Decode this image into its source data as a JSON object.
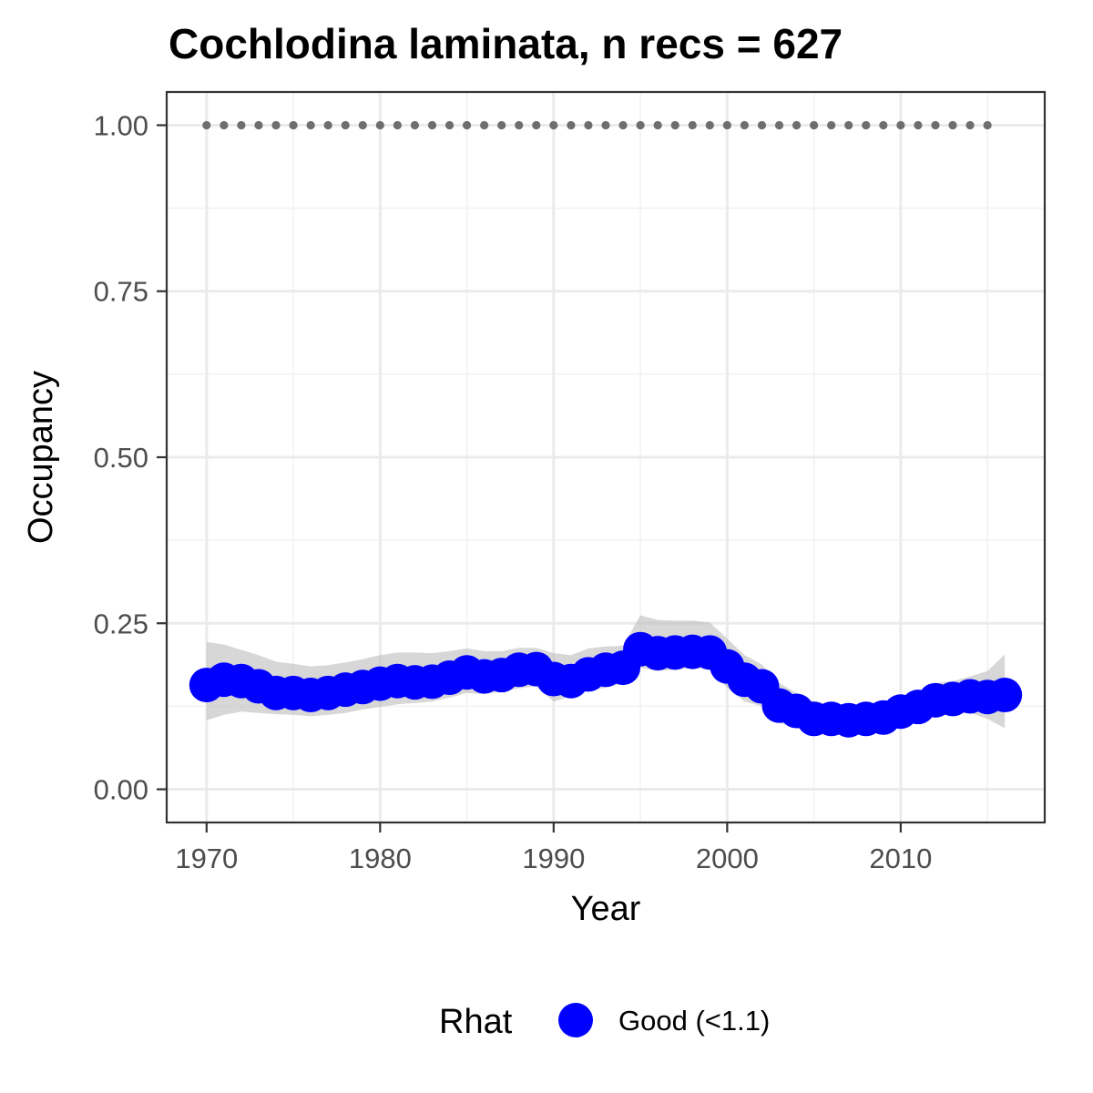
{
  "chart_data": {
    "type": "line",
    "title": "Cochlodina laminata, n recs = 627",
    "xlabel": "Year",
    "ylabel": "Occupancy",
    "xlim": [
      1967.7,
      2018.3
    ],
    "ylim": [
      -0.05,
      1.05
    ],
    "x_ticks": [
      1970,
      1980,
      1990,
      2000,
      2010
    ],
    "x_tick_labels": [
      "1970",
      "1980",
      "1990",
      "2000",
      "2010"
    ],
    "y_ticks": [
      0,
      0.25,
      0.5,
      0.75,
      1.0
    ],
    "y_tick_labels": [
      "0.00",
      "0.25",
      "0.50",
      "0.75",
      "1.00"
    ],
    "grid": true,
    "legend": {
      "position": "bottom",
      "title": "Rhat",
      "entries": [
        {
          "label": "Good (<1.1)",
          "color": "#0000ff"
        }
      ]
    },
    "series": [
      {
        "name": "Good (<1.1)",
        "color": "#0000ff",
        "x": [
          1970,
          1971,
          1972,
          1973,
          1974,
          1975,
          1976,
          1977,
          1978,
          1979,
          1980,
          1981,
          1982,
          1983,
          1984,
          1985,
          1986,
          1987,
          1988,
          1989,
          1990,
          1991,
          1992,
          1993,
          1994,
          1995,
          1996,
          1997,
          1998,
          1999,
          2000,
          2001,
          2002,
          2003,
          2004,
          2005,
          2006,
          2007,
          2008,
          2009,
          2010,
          2011,
          2012,
          2013,
          2014,
          2015,
          2016
        ],
        "y": [
          0.157,
          0.165,
          0.163,
          0.155,
          0.145,
          0.145,
          0.142,
          0.145,
          0.15,
          0.154,
          0.159,
          0.163,
          0.161,
          0.162,
          0.168,
          0.176,
          0.17,
          0.172,
          0.18,
          0.181,
          0.166,
          0.163,
          0.173,
          0.18,
          0.183,
          0.211,
          0.205,
          0.206,
          0.207,
          0.206,
          0.185,
          0.165,
          0.155,
          0.126,
          0.118,
          0.106,
          0.106,
          0.104,
          0.106,
          0.108,
          0.117,
          0.124,
          0.134,
          0.136,
          0.14,
          0.139,
          0.142
        ],
        "lower": [
          0.104,
          0.112,
          0.117,
          0.115,
          0.113,
          0.112,
          0.11,
          0.112,
          0.115,
          0.12,
          0.124,
          0.128,
          0.13,
          0.132,
          0.138,
          0.145,
          0.143,
          0.147,
          0.152,
          0.155,
          0.132,
          0.14,
          0.148,
          0.153,
          0.159,
          0.183,
          0.178,
          0.18,
          0.183,
          0.18,
          0.153,
          0.132,
          0.125,
          0.1,
          0.092,
          0.086,
          0.087,
          0.085,
          0.087,
          0.09,
          0.098,
          0.103,
          0.11,
          0.113,
          0.115,
          0.106,
          0.092
        ],
        "upper": [
          0.222,
          0.218,
          0.21,
          0.202,
          0.192,
          0.189,
          0.185,
          0.187,
          0.191,
          0.196,
          0.202,
          0.206,
          0.206,
          0.205,
          0.208,
          0.212,
          0.208,
          0.208,
          0.213,
          0.213,
          0.205,
          0.202,
          0.212,
          0.215,
          0.216,
          0.262,
          0.255,
          0.254,
          0.254,
          0.251,
          0.227,
          0.202,
          0.188,
          0.16,
          0.145,
          0.132,
          0.128,
          0.126,
          0.127,
          0.13,
          0.14,
          0.147,
          0.16,
          0.163,
          0.17,
          0.178,
          0.203
        ]
      }
    ],
    "reference_points": {
      "color": "#6e6e6e",
      "x": [
        1970,
        1971,
        1972,
        1973,
        1974,
        1975,
        1976,
        1977,
        1978,
        1979,
        1980,
        1981,
        1982,
        1983,
        1984,
        1985,
        1986,
        1987,
        1988,
        1989,
        1990,
        1991,
        1992,
        1993,
        1994,
        1995,
        1996,
        1997,
        1998,
        1999,
        2000,
        2001,
        2002,
        2003,
        2004,
        2005,
        2006,
        2007,
        2008,
        2009,
        2010,
        2011,
        2012,
        2013,
        2014,
        2015
      ],
      "y": 1.0
    }
  }
}
